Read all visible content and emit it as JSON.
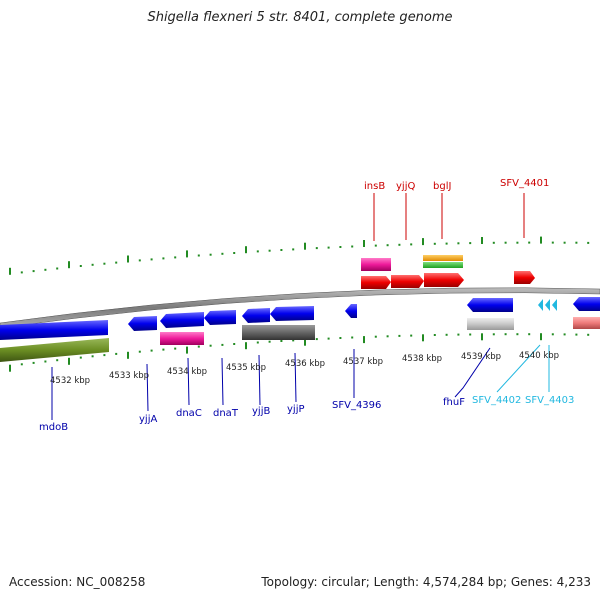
{
  "title": "Shigella flexneri 5 str. 8401, complete genome",
  "footer": {
    "accession": "Accession: NC_008258",
    "stats": "Topology: circular; Length: 4,574,284 bp; Genes: 4,233"
  },
  "ticks": [
    "4532 kbp",
    "4533 kbp",
    "4534 kbp",
    "4535 kbp",
    "4536 kbp",
    "4537 kbp",
    "4538 kbp",
    "4539 kbp",
    "4540 kbp"
  ],
  "top_labels": [
    "insB",
    "yjjQ",
    "bglJ",
    "SFV_4401"
  ],
  "bottom_labels": [
    "mdoB",
    "yjjA",
    "dnaC",
    "dnaT",
    "yjjB",
    "yjjP",
    "SFV_4396",
    "fhuF",
    "SFV_4402",
    "SFV_4403"
  ],
  "colors": {
    "backbone": "#8c8c8c",
    "forward_strand": "#ff0000",
    "reverse_strand": "#0000ff",
    "tick": "#228b22",
    "label_top": "#cc0000",
    "label_bottom": "#0000aa",
    "label_cyan": "#22b8e0"
  }
}
